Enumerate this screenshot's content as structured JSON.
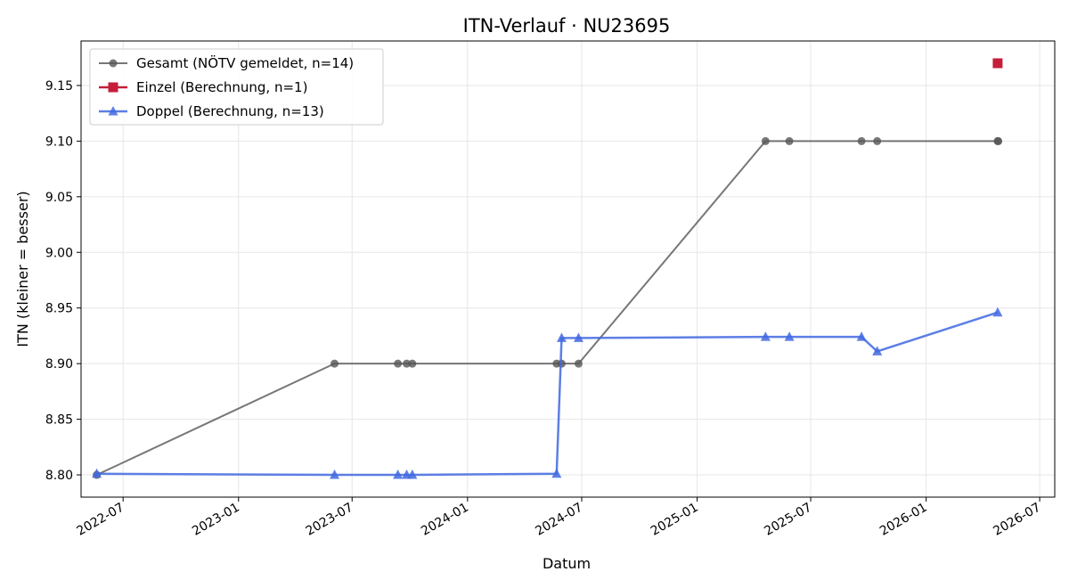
{
  "chart_data": {
    "type": "line",
    "title": "ITN-Verlauf · NU23695",
    "xlabel": "Datum",
    "ylabel": "ITN  (kleiner = besser)",
    "xlim": [
      "2022-04-25",
      "2026-07-25"
    ],
    "ylim": [
      8.78,
      9.19
    ],
    "x_ticks": [
      "2022-07",
      "2023-01",
      "2023-07",
      "2024-01",
      "2024-07",
      "2025-01",
      "2025-07",
      "2026-01",
      "2026-07"
    ],
    "y_ticks": [
      "8.80",
      "8.85",
      "8.90",
      "8.95",
      "9.00",
      "9.05",
      "9.10",
      "9.15"
    ],
    "grid": true,
    "legend_position": "top-left",
    "series": [
      {
        "name": "Gesamt (NÖTV gemeldet, n=14)",
        "color": "#555555",
        "marker": "circle",
        "points": [
          {
            "x": "2022-05-20",
            "y": 8.8
          },
          {
            "x": "2023-06-03",
            "y": 8.9
          },
          {
            "x": "2023-09-12",
            "y": 8.9
          },
          {
            "x": "2023-09-26",
            "y": 8.9
          },
          {
            "x": "2023-10-05",
            "y": 8.9
          },
          {
            "x": "2024-05-22",
            "y": 8.9
          },
          {
            "x": "2024-05-30",
            "y": 8.9
          },
          {
            "x": "2024-06-26",
            "y": 8.9
          },
          {
            "x": "2025-04-20",
            "y": 9.1
          },
          {
            "x": "2025-05-28",
            "y": 9.1
          },
          {
            "x": "2025-09-20",
            "y": 9.1
          },
          {
            "x": "2025-10-15",
            "y": 9.1
          },
          {
            "x": "2026-04-25",
            "y": 9.1
          },
          {
            "x": "2026-04-26",
            "y": 9.1
          }
        ]
      },
      {
        "name": "Einzel (Berechnung, n=1)",
        "color": "#c41e3a",
        "marker": "square",
        "points": [
          {
            "x": "2026-04-25",
            "y": 9.17
          }
        ]
      },
      {
        "name": "Doppel (Berechnung, n=13)",
        "color": "#4169e1",
        "marker": "triangle",
        "points": [
          {
            "x": "2022-05-20",
            "y": 8.801
          },
          {
            "x": "2023-06-03",
            "y": 8.8
          },
          {
            "x": "2023-09-12",
            "y": 8.8
          },
          {
            "x": "2023-09-26",
            "y": 8.8
          },
          {
            "x": "2023-10-05",
            "y": 8.8
          },
          {
            "x": "2024-05-22",
            "y": 8.801
          },
          {
            "x": "2024-05-30",
            "y": 8.923
          },
          {
            "x": "2024-06-26",
            "y": 8.923
          },
          {
            "x": "2025-04-20",
            "y": 8.924
          },
          {
            "x": "2025-05-28",
            "y": 8.924
          },
          {
            "x": "2025-09-20",
            "y": 8.924
          },
          {
            "x": "2025-10-15",
            "y": 8.911
          },
          {
            "x": "2026-04-25",
            "y": 8.946
          }
        ]
      }
    ]
  }
}
